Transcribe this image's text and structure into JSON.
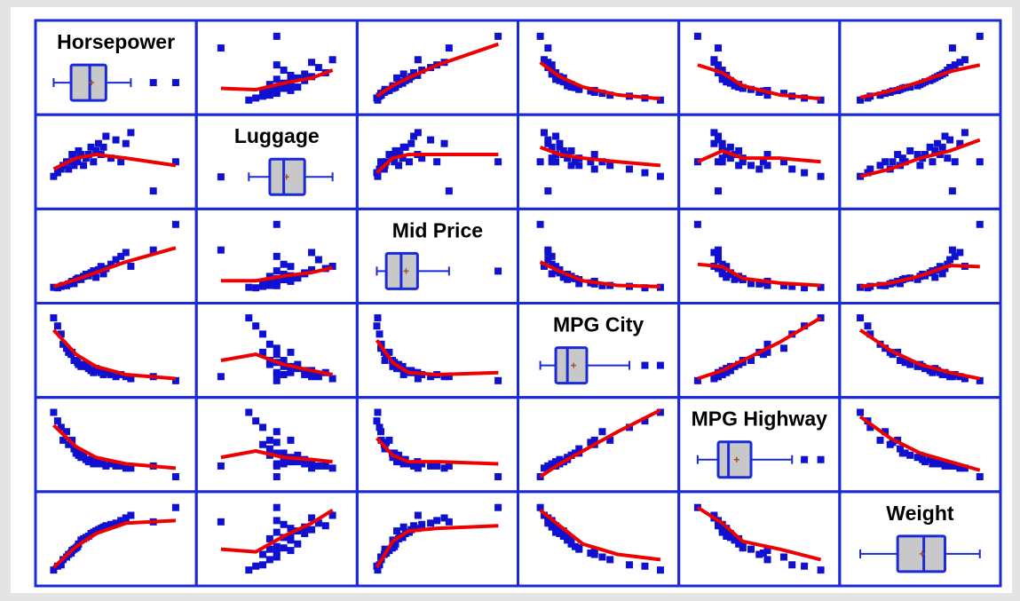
{
  "chart_data": {
    "type": "scatter_matrix",
    "point_color": "#1010d0",
    "smooth_color": "#ee0000",
    "box_fill": "#c8c8c8",
    "frame_color": "#1a2ad8",
    "mean_color": "#a0522d",
    "variables": [
      {
        "name": "Horsepower",
        "lim": [
          40,
          320
        ],
        "values": [
          55,
          63,
          70,
          74,
          81,
          85,
          90,
          92,
          96,
          100,
          103,
          105,
          110,
          115,
          120,
          125,
          130,
          135,
          140,
          145,
          150,
          155,
          160,
          170,
          180,
          190,
          200,
          210,
          255,
          300
        ],
        "box": {
          "whisker_low": 55,
          "q1": 90,
          "median": 127.5,
          "q3": 160,
          "whisker_high": 210,
          "mean": 131,
          "outliers": [
            255,
            300
          ]
        }
      },
      {
        "name": "Luggage",
        "lim": [
          4,
          24
        ],
        "values": [
          10,
          11,
          12,
          13,
          14,
          12,
          14,
          16,
          13,
          15,
          14,
          17,
          16,
          13,
          15,
          16,
          18,
          14,
          17,
          19,
          16,
          18,
          21,
          15,
          20,
          14,
          19,
          22,
          6,
          14
        ],
        "box": {
          "whisker_low": 10,
          "q1": 13,
          "median": 15,
          "q3": 18,
          "whisker_high": 22,
          "mean": 15.4,
          "outliers": [
            6
          ]
        }
      },
      {
        "name": "Mid Price",
        "lim": [
          4,
          66
        ],
        "values": [
          8.4,
          8.0,
          9.2,
          10.0,
          9.8,
          11.3,
          12.2,
          13.5,
          11.6,
          14.9,
          15.8,
          16.3,
          15.1,
          17.7,
          19.5,
          18.2,
          20.7,
          22.4,
          16.9,
          23.3,
          26.1,
          19.9,
          24.4,
          28.0,
          31.9,
          34.7,
          38.0,
          26.3,
          40.1,
          61.9
        ],
        "box": {
          "whisker_low": 8,
          "q1": 12.2,
          "median": 18.8,
          "q3": 26.1,
          "whisker_high": 40.1,
          "mean": 21,
          "outliers": [
            61.9
          ]
        }
      },
      {
        "name": "MPG City",
        "lim": [
          12,
          48
        ],
        "values": [
          46,
          42,
          38,
          33,
          31,
          29,
          28,
          29,
          25,
          25,
          24,
          23,
          22,
          23,
          22,
          21,
          20,
          19,
          21,
          20,
          19,
          18,
          19,
          18,
          17,
          18,
          17,
          16,
          17,
          15
        ],
        "box": {
          "whisker_low": 15,
          "q1": 19,
          "median": 22,
          "q3": 27,
          "whisker_high": 38,
          "mean": 23.6,
          "outliers": [
            42,
            46
          ]
        }
      },
      {
        "name": "MPG Highway",
        "lim": [
          18,
          52
        ],
        "values": [
          50,
          46,
          43,
          37,
          41,
          35,
          36,
          37,
          33,
          31,
          31,
          30,
          29,
          30,
          28,
          27,
          28,
          26,
          27,
          26,
          27,
          26,
          25,
          26,
          25,
          25,
          24,
          24,
          25,
          20
        ],
        "box": {
          "whisker_low": 20,
          "q1": 25,
          "median": 27.5,
          "q3": 33,
          "whisker_high": 43,
          "mean": 29.5,
          "outliers": [
            46,
            50
          ]
        }
      },
      {
        "name": "Weight",
        "lim": [
          1500,
          4300
        ],
        "values": [
          1700,
          1850,
          1900,
          2100,
          2200,
          2300,
          2350,
          2450,
          2500,
          2550,
          2600,
          2700,
          2850,
          2900,
          2950,
          3000,
          3100,
          3150,
          3200,
          3250,
          3300,
          3350,
          3400,
          3450,
          3500,
          3600,
          3700,
          3800,
          3550,
          4100
        ],
        "box": {
          "whisker_low": 1700,
          "q1": 2450,
          "median": 2975,
          "q3": 3400,
          "whisker_high": 4100,
          "mean": 2940,
          "outliers": []
        }
      }
    ],
    "smooths": [
      [
        null,
        {
          "x": [
            6,
            11,
            15,
            19,
            22
          ],
          "y": [
            100,
            95,
            120,
            140,
            170
          ]
        },
        {
          "x": [
            8,
            15,
            22,
            35,
            62
          ],
          "y": [
            70,
            110,
            140,
            190,
            270
          ]
        },
        {
          "x": [
            15,
            20,
            26,
            35,
            46
          ],
          "y": [
            200,
            145,
            105,
            75,
            60
          ]
        },
        {
          "x": [
            20,
            26,
            31,
            40,
            50
          ],
          "y": [
            190,
            160,
            110,
            75,
            60
          ]
        },
        {
          "x": [
            1700,
            2300,
            2900,
            3500,
            4100
          ],
          "y": [
            65,
            90,
            125,
            165,
            190
          ]
        }
      ],
      [
        {
          "x": [
            55,
            100,
            140,
            200,
            300
          ],
          "y": [
            12,
            15,
            16,
            15,
            13
          ]
        },
        null,
        {
          "x": [
            8,
            15,
            22,
            35,
            62
          ],
          "y": [
            11,
            15,
            16,
            16,
            16
          ]
        },
        {
          "x": [
            15,
            20,
            26,
            35,
            46
          ],
          "y": [
            18,
            16,
            15,
            14,
            13
          ]
        },
        {
          "x": [
            20,
            26,
            31,
            40,
            50
          ],
          "y": [
            14,
            17,
            15,
            15,
            14
          ]
        },
        {
          "x": [
            1700,
            2300,
            2900,
            3500,
            4100
          ],
          "y": [
            10,
            12,
            15,
            17,
            20
          ]
        }
      ],
      [
        {
          "x": [
            55,
            100,
            140,
            200,
            300
          ],
          "y": [
            9,
            15,
            21,
            30,
            42
          ]
        },
        {
          "x": [
            6,
            11,
            15,
            19,
            22
          ],
          "y": [
            14,
            14,
            18,
            21,
            25
          ]
        },
        null,
        {
          "x": [
            15,
            20,
            26,
            35,
            46
          ],
          "y": [
            30,
            22,
            14,
            10,
            9
          ]
        },
        {
          "x": [
            20,
            26,
            31,
            40,
            50
          ],
          "y": [
            28,
            26,
            16,
            12,
            10
          ]
        },
        {
          "x": [
            1700,
            2300,
            2900,
            3500,
            4100
          ],
          "y": [
            9,
            12,
            18,
            27,
            26
          ]
        }
      ],
      [
        {
          "x": [
            55,
            100,
            140,
            200,
            300
          ],
          "y": [
            40,
            28,
            22,
            18,
            16
          ]
        },
        {
          "x": [
            6,
            11,
            15,
            19,
            22
          ],
          "y": [
            25,
            28,
            23,
            20,
            18
          ]
        },
        {
          "x": [
            8,
            15,
            22,
            35,
            62
          ],
          "y": [
            35,
            24,
            19,
            18,
            19
          ]
        },
        null,
        {
          "x": [
            20,
            26,
            31,
            40,
            50
          ],
          "y": [
            16,
            20,
            25,
            34,
            46
          ]
        },
        {
          "x": [
            1700,
            2300,
            2900,
            3500,
            4100
          ],
          "y": [
            40,
            30,
            23,
            19,
            16
          ]
        }
      ],
      [
        {
          "x": [
            55,
            100,
            140,
            200,
            300
          ],
          "y": [
            44,
            34,
            29,
            26,
            24
          ]
        },
        {
          "x": [
            6,
            11,
            15,
            19,
            22
          ],
          "y": [
            29,
            32,
            29,
            28,
            27
          ]
        },
        {
          "x": [
            8,
            15,
            22,
            35,
            62
          ],
          "y": [
            38,
            30,
            27,
            27,
            26
          ]
        },
        {
          "x": [
            15,
            20,
            26,
            35,
            46
          ],
          "y": [
            20,
            26,
            32,
            41,
            51
          ]
        },
        null,
        {
          "x": [
            1700,
            2300,
            2900,
            3500,
            4100
          ],
          "y": [
            48,
            38,
            31,
            27,
            23
          ]
        }
      ],
      [
        {
          "x": [
            55,
            100,
            140,
            200,
            300
          ],
          "y": [
            1800,
            2600,
            3100,
            3500,
            3600
          ]
        },
        {
          "x": [
            6,
            11,
            15,
            19,
            22
          ],
          "y": [
            2500,
            2400,
            3000,
            3500,
            4000
          ]
        },
        {
          "x": [
            8,
            15,
            22,
            35,
            62
          ],
          "y": [
            1800,
            2800,
            3200,
            3300,
            3400
          ]
        },
        {
          "x": [
            15,
            20,
            26,
            35,
            46
          ],
          "y": [
            4000,
            3400,
            2700,
            2300,
            2100
          ]
        },
        {
          "x": [
            20,
            26,
            31,
            40,
            50
          ],
          "y": [
            4100,
            3500,
            2800,
            2500,
            2100
          ]
        },
        null
      ]
    ]
  }
}
